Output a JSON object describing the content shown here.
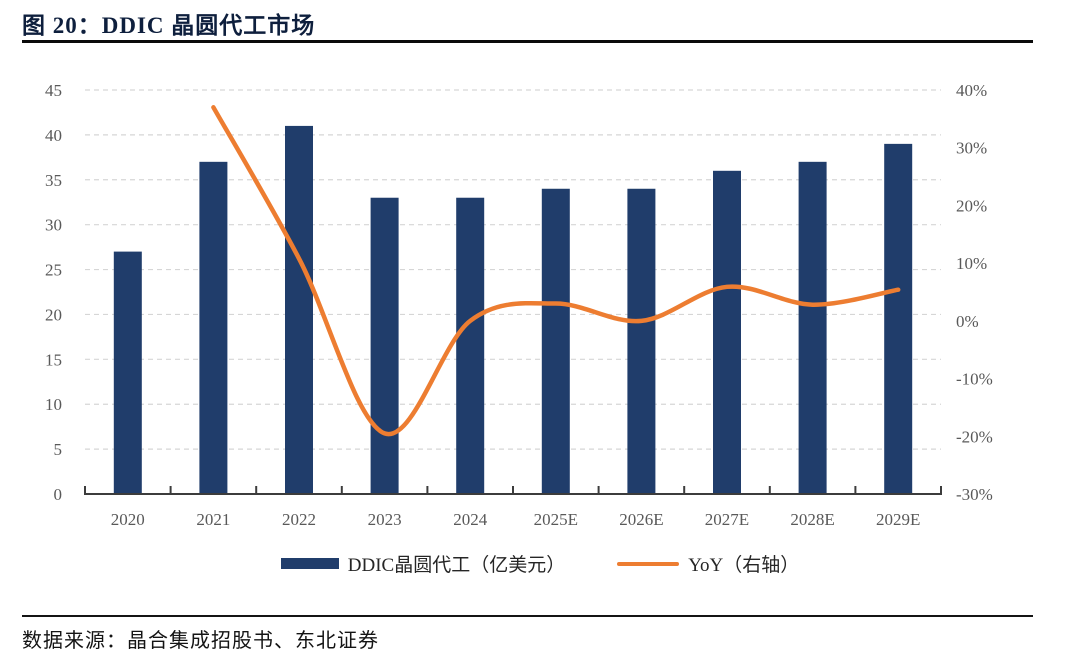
{
  "header": {
    "title": "图 20：DDIC 晶圆代工市场"
  },
  "legend": {
    "bar_label": "DDIC晶圆代工（亿美元）",
    "line_label": "YoY（右轴）"
  },
  "footer": {
    "source": "数据来源：晶合集成招股书、东北证券"
  },
  "colors": {
    "bar": "#203d6b",
    "line": "#ED7D31",
    "axis_text": "#595959",
    "gridline": "#d6d6d6",
    "axis_line": "#3c3c3c",
    "title": "#0e1f3d"
  },
  "chart_data": {
    "type": "bar",
    "title": "图 20：DDIC 晶圆代工市场",
    "categories": [
      "2020",
      "2021",
      "2022",
      "2023",
      "2024",
      "2025E",
      "2026E",
      "2027E",
      "2028E",
      "2029E"
    ],
    "series": [
      {
        "name": "DDIC晶圆代工（亿美元）",
        "type": "bar",
        "axis": "left",
        "values": [
          27,
          37,
          41,
          33,
          33,
          34,
          34,
          36,
          37,
          39
        ]
      },
      {
        "name": "YoY（右轴）",
        "type": "line",
        "axis": "right",
        "unit": "%",
        "values": [
          null,
          37.0,
          10.8,
          -19.5,
          0.0,
          3.0,
          0.0,
          5.9,
          2.8,
          5.4
        ]
      }
    ],
    "left_axis": {
      "min": 0,
      "max": 45,
      "step": 5,
      "ticks": [
        0,
        5,
        10,
        15,
        20,
        25,
        30,
        35,
        40,
        45
      ]
    },
    "right_axis": {
      "min": -30,
      "max": 40,
      "step": 10,
      "ticks": [
        40,
        30,
        20,
        10,
        0,
        -10,
        -20,
        -30
      ],
      "format": "percent"
    },
    "grid": "dashed-horizontal",
    "legend_position": "bottom",
    "source": "数据来源：晶合集成招股书、东北证券"
  }
}
